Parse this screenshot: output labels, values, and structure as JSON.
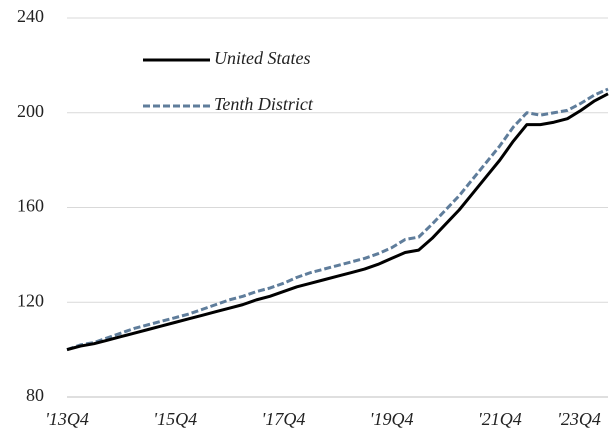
{
  "chart_data": {
    "type": "line",
    "categories": [
      "'13Q4",
      null,
      null,
      null,
      null,
      null,
      null,
      null,
      "'15Q4",
      null,
      null,
      null,
      null,
      null,
      null,
      null,
      "'17Q4",
      null,
      null,
      null,
      null,
      null,
      null,
      null,
      "'19Q4",
      null,
      null,
      null,
      null,
      null,
      null,
      null,
      "'21Q4",
      null,
      null,
      null,
      null,
      null,
      null,
      null,
      "'23Q4"
    ],
    "series": [
      {
        "name": "United States",
        "color": "#000000",
        "dash": false,
        "values": [
          100,
          101.5,
          102.5,
          104,
          105.5,
          107,
          108.5,
          110,
          111.5,
          113,
          114.5,
          116,
          117.5,
          119,
          121,
          122.5,
          124.5,
          126.5,
          128,
          129.5,
          131,
          132.5,
          134,
          136,
          138.5,
          141,
          142,
          147,
          153,
          159,
          166,
          173,
          180,
          188,
          195,
          195,
          196,
          197.5,
          201,
          205,
          208
        ]
      },
      {
        "name": "Tenth District",
        "color": "#5f7d9b",
        "dash": true,
        "values": [
          100,
          102,
          103,
          105,
          107,
          109,
          110.5,
          112,
          113.5,
          115,
          117,
          119,
          121,
          122.5,
          124.5,
          126,
          128,
          130.5,
          132.5,
          134,
          135.5,
          137,
          138.5,
          140.5,
          143,
          146.5,
          147.5,
          153,
          159,
          165,
          172,
          179,
          186,
          194,
          200,
          199,
          200,
          201,
          204,
          207.5,
          210
        ]
      }
    ],
    "ylim": [
      80,
      240
    ],
    "yticks": [
      80,
      120,
      160,
      200,
      240
    ],
    "grid": true
  }
}
